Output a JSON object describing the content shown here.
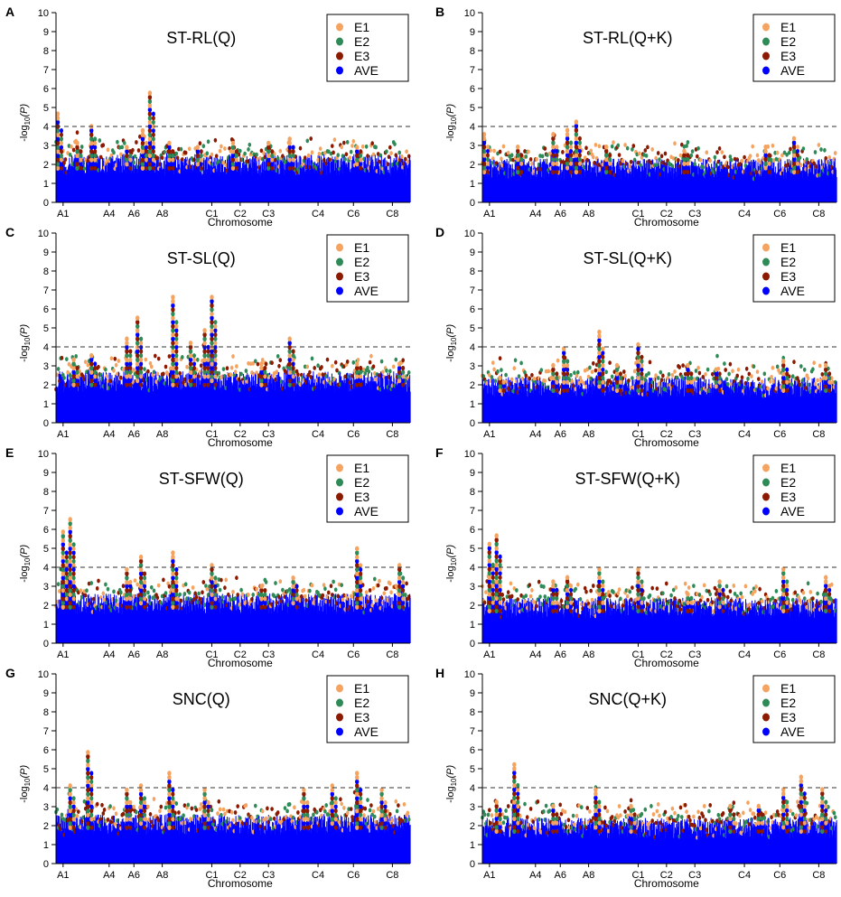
{
  "figure": {
    "xlabel": "Chromosome",
    "ylabel_prefix": "-log",
    "ylabel_sub": "10",
    "ylabel_suffix": "(P)",
    "threshold": 4
  },
  "chart_data": [
    {
      "type": "scatter",
      "panel_letter": "A",
      "title": "ST-RL(Q)",
      "xlabel": "Chromosome",
      "ylabel": "-log10(P)",
      "ylim": [
        0,
        10
      ],
      "yticks": [
        0,
        1,
        2,
        3,
        4,
        5,
        6,
        7,
        8,
        9,
        10
      ],
      "xtick_labels": [
        "A1",
        "A4",
        "A6",
        "A8",
        "C1",
        "C2",
        "C3",
        "C4",
        "C6",
        "C8"
      ],
      "threshold": 4,
      "legend_position": "top-right",
      "series": [
        {
          "name": "E1",
          "color": "#f4a460"
        },
        {
          "name": "E2",
          "color": "#2e8b57"
        },
        {
          "name": "E3",
          "color": "#8b1a00"
        },
        {
          "name": "AVE",
          "color": "#0000ff"
        }
      ],
      "peaks": [
        [
          0.005,
          4.6
        ],
        [
          0.06,
          3.1
        ],
        [
          0.1,
          4.1
        ],
        [
          0.2,
          3.0
        ],
        [
          0.245,
          3.8
        ],
        [
          0.265,
          5.7
        ],
        [
          0.32,
          3.1
        ],
        [
          0.4,
          3.0
        ],
        [
          0.5,
          3.2
        ],
        [
          0.6,
          3.1
        ],
        [
          0.66,
          3.3
        ],
        [
          0.85,
          3.0
        ]
      ],
      "base_level": 1.8
    },
    {
      "type": "scatter",
      "panel_letter": "B",
      "title": "ST-RL(Q+K)",
      "xlabel": "Chromosome",
      "ylabel": "-log10(P)",
      "ylim": [
        0,
        10
      ],
      "yticks": [
        0,
        1,
        2,
        3,
        4,
        5,
        6,
        7,
        8,
        9,
        10
      ],
      "xtick_labels": [
        "A1",
        "A4",
        "A6",
        "A8",
        "C1",
        "C2",
        "C3",
        "C4",
        "C6",
        "C8"
      ],
      "threshold": 4,
      "legend_position": "top-right",
      "series": [
        {
          "name": "E1",
          "color": "#f4a460"
        },
        {
          "name": "E2",
          "color": "#2e8b57"
        },
        {
          "name": "E3",
          "color": "#8b1a00"
        },
        {
          "name": "AVE",
          "color": "#0000ff"
        }
      ],
      "peaks": [
        [
          0.005,
          3.6
        ],
        [
          0.1,
          3.0
        ],
        [
          0.2,
          3.6
        ],
        [
          0.24,
          3.7
        ],
        [
          0.265,
          4.3
        ],
        [
          0.35,
          3.0
        ],
        [
          0.57,
          2.6
        ],
        [
          0.8,
          2.9
        ],
        [
          0.88,
          3.4
        ]
      ],
      "base_level": 1.6
    },
    {
      "type": "scatter",
      "panel_letter": "C",
      "title": "ST-SL(Q)",
      "xlabel": "Chromosome",
      "ylabel": "-log10(P)",
      "ylim": [
        0,
        10
      ],
      "yticks": [
        0,
        1,
        2,
        3,
        4,
        5,
        6,
        7,
        8,
        9,
        10
      ],
      "xtick_labels": [
        "A1",
        "A4",
        "A6",
        "A8",
        "C1",
        "C2",
        "C3",
        "C4",
        "C6",
        "C8"
      ],
      "threshold": 4,
      "legend_position": "top-right",
      "series": [
        {
          "name": "E1",
          "color": "#f4a460"
        },
        {
          "name": "E2",
          "color": "#2e8b57"
        },
        {
          "name": "E3",
          "color": "#8b1a00"
        },
        {
          "name": "AVE",
          "color": "#0000ff"
        }
      ],
      "peaks": [
        [
          0.05,
          3.4
        ],
        [
          0.1,
          3.6
        ],
        [
          0.2,
          4.5
        ],
        [
          0.23,
          5.5
        ],
        [
          0.33,
          6.6
        ],
        [
          0.38,
          4.3
        ],
        [
          0.42,
          4.9
        ],
        [
          0.44,
          6.7
        ],
        [
          0.58,
          3.0
        ],
        [
          0.66,
          4.4
        ],
        [
          0.85,
          3.1
        ],
        [
          0.97,
          3.2
        ]
      ],
      "base_level": 2.0
    },
    {
      "type": "scatter",
      "panel_letter": "D",
      "title": "ST-SL(Q+K)",
      "xlabel": "Chromosome",
      "ylabel": "-log10(P)",
      "ylim": [
        0,
        10
      ],
      "yticks": [
        0,
        1,
        2,
        3,
        4,
        5,
        6,
        7,
        8,
        9,
        10
      ],
      "xtick_labels": [
        "A1",
        "A4",
        "A6",
        "A8",
        "C1",
        "C2",
        "C3",
        "C4",
        "C6",
        "C8"
      ],
      "threshold": 4,
      "legend_position": "top-right",
      "series": [
        {
          "name": "E1",
          "color": "#f4a460"
        },
        {
          "name": "E2",
          "color": "#2e8b57"
        },
        {
          "name": "E3",
          "color": "#8b1a00"
        },
        {
          "name": "AVE",
          "color": "#0000ff"
        }
      ],
      "peaks": [
        [
          0.05,
          2.4
        ],
        [
          0.2,
          3.0
        ],
        [
          0.23,
          4.0
        ],
        [
          0.33,
          4.8
        ],
        [
          0.38,
          3.0
        ],
        [
          0.44,
          4.2
        ],
        [
          0.58,
          3.0
        ],
        [
          0.66,
          2.9
        ],
        [
          0.85,
          3.3
        ],
        [
          0.97,
          3.1
        ]
      ],
      "base_level": 1.7
    },
    {
      "type": "scatter",
      "panel_letter": "E",
      "title": "ST-SFW(Q)",
      "xlabel": "Chromosome",
      "ylabel": "-log10(P)",
      "ylim": [
        0,
        10
      ],
      "yticks": [
        0,
        1,
        2,
        3,
        4,
        5,
        6,
        7,
        8,
        9,
        10
      ],
      "xtick_labels": [
        "A1",
        "A4",
        "A6",
        "A8",
        "C1",
        "C2",
        "C3",
        "C4",
        "C6",
        "C8"
      ],
      "threshold": 4,
      "legend_position": "top-right",
      "series": [
        {
          "name": "E1",
          "color": "#f4a460"
        },
        {
          "name": "E2",
          "color": "#2e8b57"
        },
        {
          "name": "E3",
          "color": "#8b1a00"
        },
        {
          "name": "AVE",
          "color": "#0000ff"
        }
      ],
      "peaks": [
        [
          0.02,
          5.9
        ],
        [
          0.04,
          6.6
        ],
        [
          0.2,
          3.9
        ],
        [
          0.24,
          4.6
        ],
        [
          0.33,
          4.7
        ],
        [
          0.44,
          4.2
        ],
        [
          0.58,
          3.0
        ],
        [
          0.67,
          3.4
        ],
        [
          0.85,
          4.9
        ],
        [
          0.97,
          4.1
        ]
      ],
      "base_level": 1.9
    },
    {
      "type": "scatter",
      "panel_letter": "F",
      "title": "ST-SFW(Q+K)",
      "xlabel": "Chromosome",
      "ylabel": "-log10(P)",
      "ylim": [
        0,
        10
      ],
      "yticks": [
        0,
        1,
        2,
        3,
        4,
        5,
        6,
        7,
        8,
        9,
        10
      ],
      "xtick_labels": [
        "A1",
        "A4",
        "A6",
        "A8",
        "C1",
        "C2",
        "C3",
        "C4",
        "C6",
        "C8"
      ],
      "threshold": 4,
      "legend_position": "top-right",
      "series": [
        {
          "name": "E1",
          "color": "#f4a460"
        },
        {
          "name": "E2",
          "color": "#2e8b57"
        },
        {
          "name": "E3",
          "color": "#8b1a00"
        },
        {
          "name": "AVE",
          "color": "#0000ff"
        }
      ],
      "peaks": [
        [
          0.02,
          5.3
        ],
        [
          0.04,
          5.6
        ],
        [
          0.2,
          3.3
        ],
        [
          0.24,
          3.4
        ],
        [
          0.33,
          3.9
        ],
        [
          0.44,
          3.8
        ],
        [
          0.58,
          2.6
        ],
        [
          0.67,
          3.3
        ],
        [
          0.85,
          3.9
        ],
        [
          0.97,
          3.5
        ]
      ],
      "base_level": 1.7
    },
    {
      "type": "scatter",
      "panel_letter": "G",
      "title": "SNC(Q)",
      "xlabel": "Chromosome",
      "ylabel": "-log10(P)",
      "ylim": [
        0,
        10
      ],
      "yticks": [
        0,
        1,
        2,
        3,
        4,
        5,
        6,
        7,
        8,
        9,
        10
      ],
      "xtick_labels": [
        "A1",
        "A4",
        "A6",
        "A8",
        "C1",
        "C2",
        "C3",
        "C4",
        "C6",
        "C8"
      ],
      "threshold": 4,
      "legend_position": "top-right",
      "series": [
        {
          "name": "E1",
          "color": "#f4a460"
        },
        {
          "name": "E2",
          "color": "#2e8b57"
        },
        {
          "name": "E3",
          "color": "#8b1a00"
        },
        {
          "name": "AVE",
          "color": "#0000ff"
        }
      ],
      "peaks": [
        [
          0.04,
          4.0
        ],
        [
          0.09,
          5.8
        ],
        [
          0.2,
          3.8
        ],
        [
          0.24,
          4.0
        ],
        [
          0.32,
          4.7
        ],
        [
          0.42,
          3.9
        ],
        [
          0.7,
          3.8
        ],
        [
          0.78,
          4.2
        ],
        [
          0.85,
          4.8
        ],
        [
          0.92,
          3.9
        ]
      ],
      "base_level": 1.9
    },
    {
      "type": "scatter",
      "panel_letter": "H",
      "title": "SNC(Q+K)",
      "xlabel": "Chromosome",
      "ylabel": "-log10(P)",
      "ylim": [
        0,
        10
      ],
      "yticks": [
        0,
        1,
        2,
        3,
        4,
        5,
        6,
        7,
        8,
        9,
        10
      ],
      "xtick_labels": [
        "A1",
        "A4",
        "A6",
        "A8",
        "C1",
        "C2",
        "C3",
        "C4",
        "C6",
        "C8"
      ],
      "threshold": 4,
      "legend_position": "top-right",
      "series": [
        {
          "name": "E1",
          "color": "#f4a460"
        },
        {
          "name": "E2",
          "color": "#2e8b57"
        },
        {
          "name": "E3",
          "color": "#8b1a00"
        },
        {
          "name": "AVE",
          "color": "#0000ff"
        }
      ],
      "peaks": [
        [
          0.04,
          3.3
        ],
        [
          0.09,
          5.2
        ],
        [
          0.2,
          3.1
        ],
        [
          0.32,
          4.0
        ],
        [
          0.42,
          3.1
        ],
        [
          0.7,
          3.0
        ],
        [
          0.78,
          3.1
        ],
        [
          0.85,
          3.9
        ],
        [
          0.9,
          4.5
        ],
        [
          0.96,
          3.8
        ]
      ],
      "base_level": 1.7
    }
  ]
}
